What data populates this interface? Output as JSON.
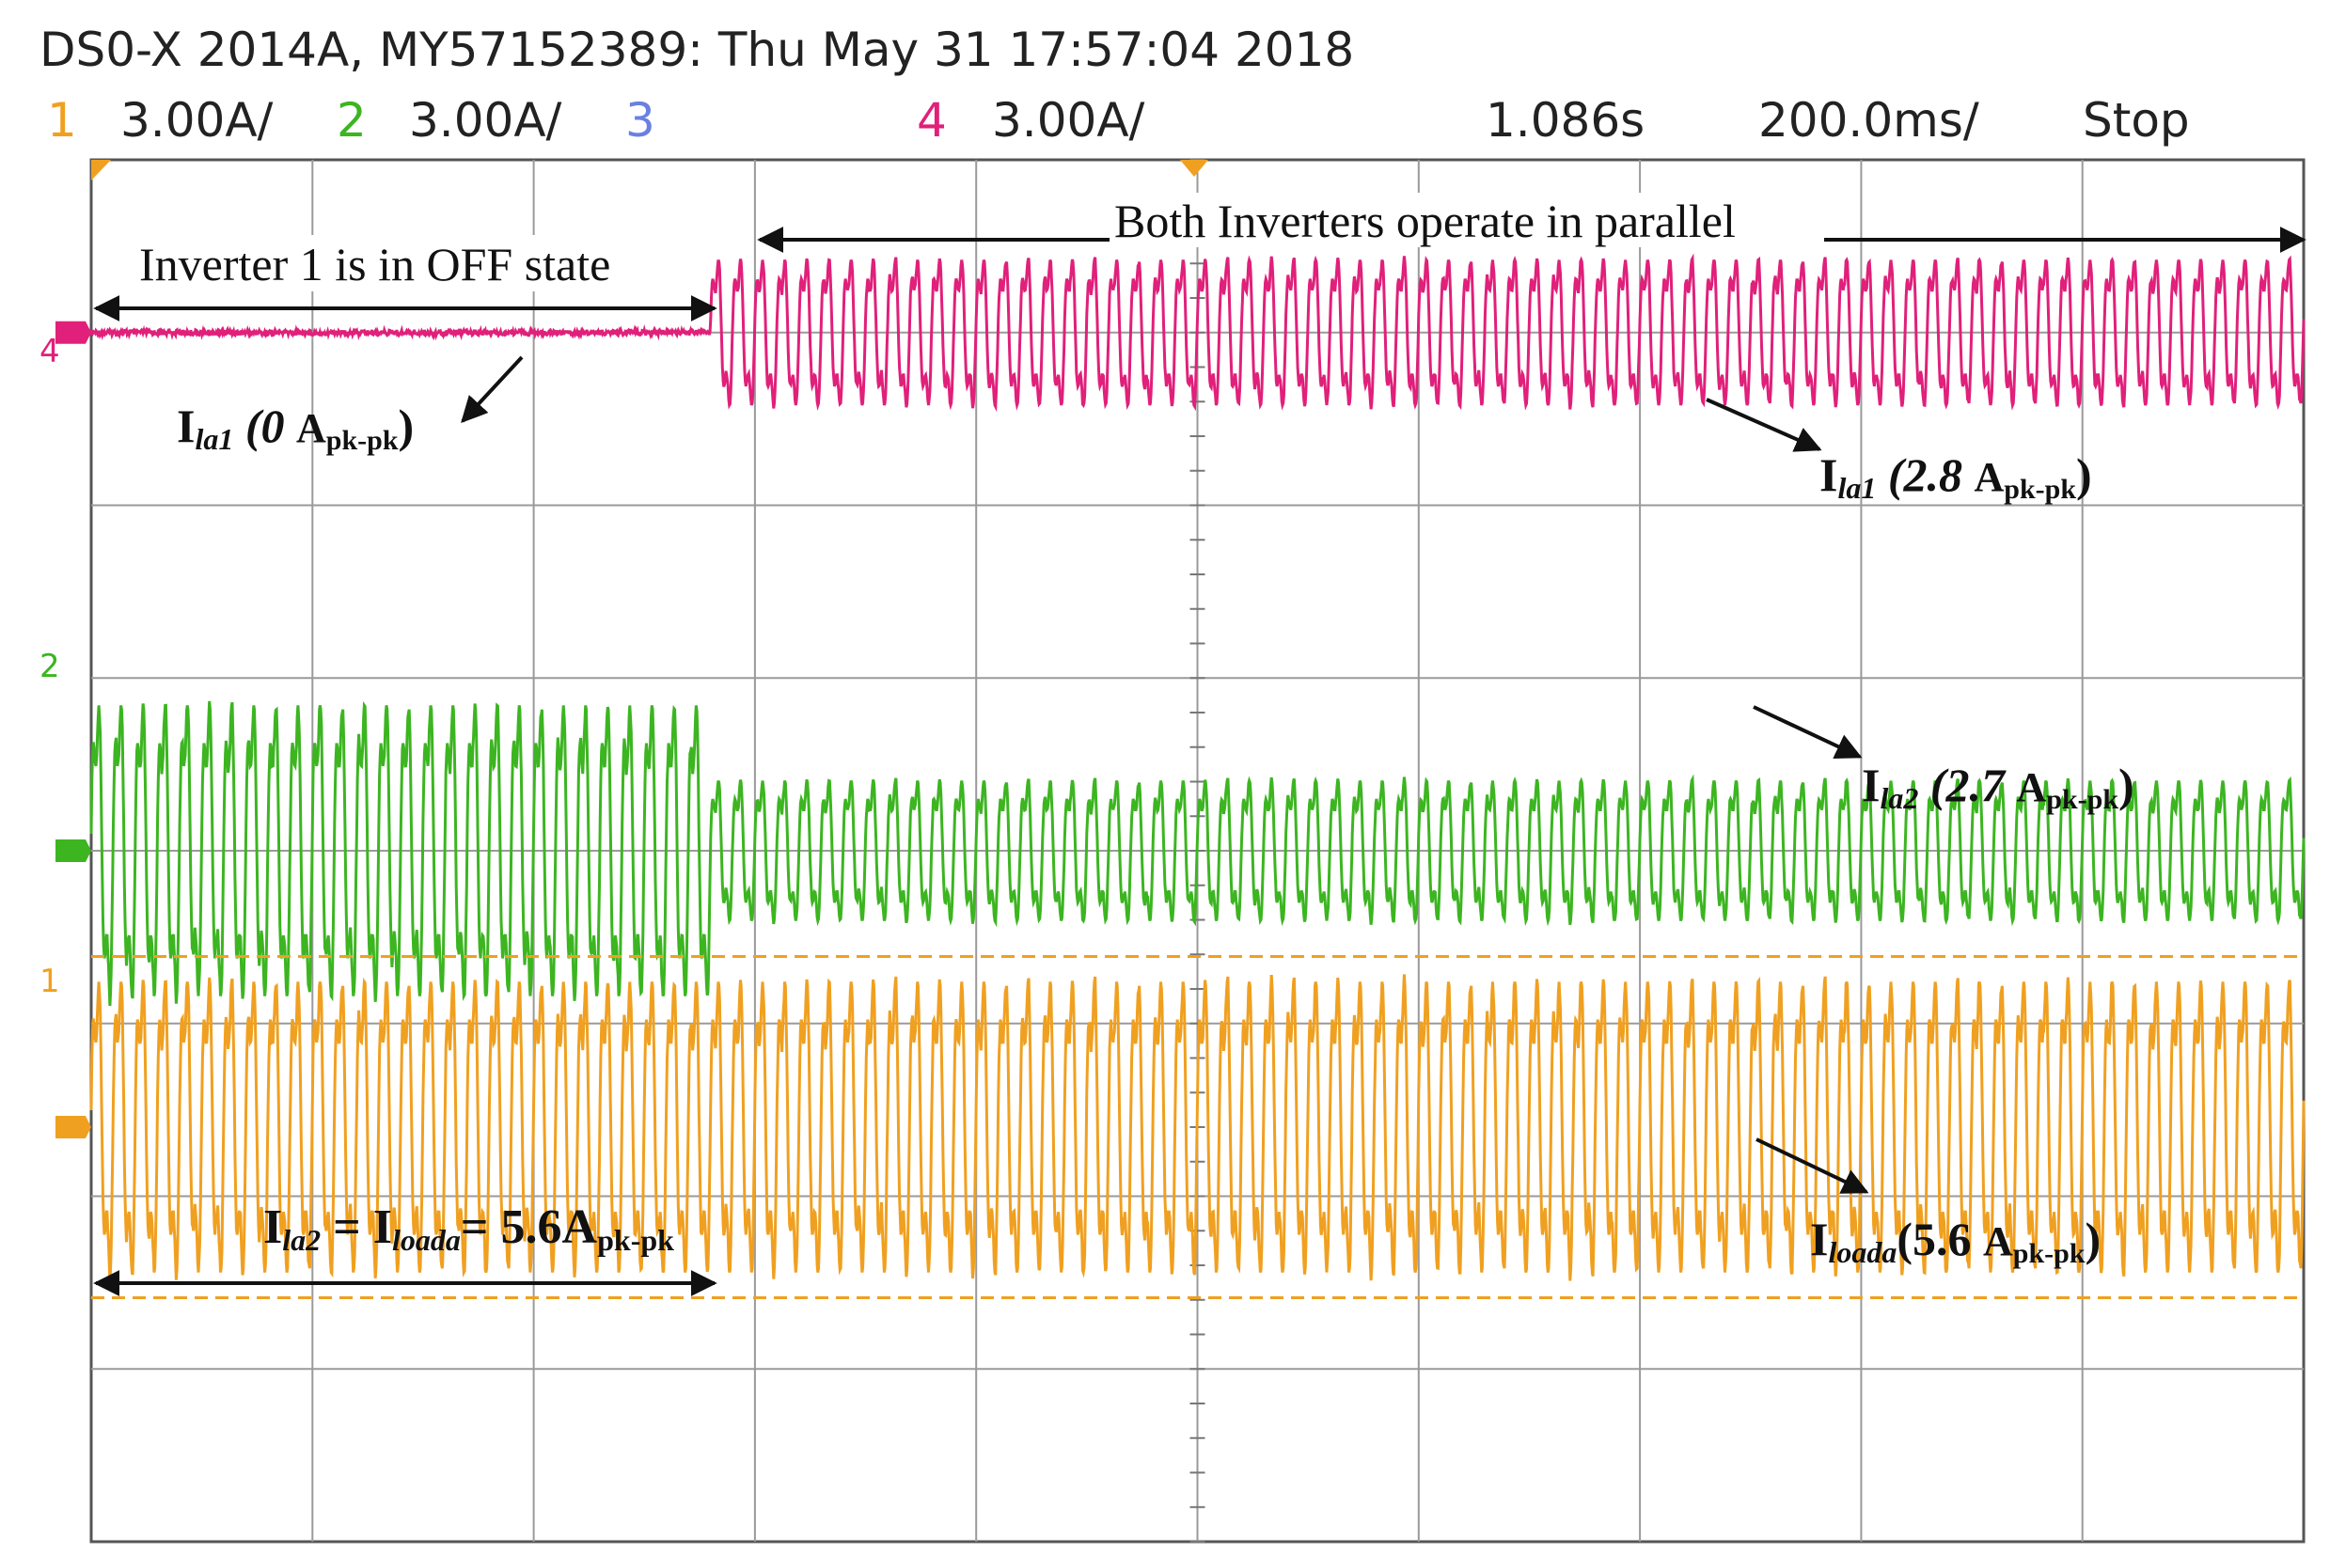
{
  "header": {
    "title": "DS0-X 2014A, MY57152389: Thu May 31 17:57:04 2018",
    "channels": [
      {
        "num": "1",
        "scale": "3.00A/",
        "color": "#f0a020"
      },
      {
        "num": "2",
        "scale": "3.00A/",
        "color": "#3cb521"
      },
      {
        "num": "3",
        "scale": "",
        "color": "#6a80e0"
      },
      {
        "num": "4",
        "scale": "3.00A/",
        "color": "#e0207a"
      }
    ],
    "time_position": "1.086s",
    "time_scale": "200.0ms/",
    "run_state": "Stop"
  },
  "ground_markers": [
    "4",
    "2",
    "1"
  ],
  "annotations": {
    "off_state": "Inverter 1 is in OFF state",
    "parallel": "Both Inverters operate in parallel",
    "ila1_before": {
      "main": "I",
      "sub": "la1",
      "value": " (0 ",
      "unit": "A",
      "unit_sub": "pk-pk",
      "close": ")"
    },
    "ila1_after": {
      "main": "I",
      "sub": "la1",
      "value": " (2.8 ",
      "unit": "A",
      "unit_sub": "pk-pk",
      "close": ")"
    },
    "ila2_after": {
      "main": "I",
      "sub": "la2",
      "value": " (2.7 ",
      "unit": "A",
      "unit_sub": "pk-pk",
      "close": ")"
    },
    "iload_after": {
      "main": "I",
      "sub": "loada",
      "value": "(5.6 ",
      "unit": "A",
      "unit_sub": "pk-pk",
      "close": ")"
    },
    "equality": {
      "a": "I",
      "a_sub": "la2",
      "eq1": " = ",
      "b": "I",
      "b_sub": "loada",
      "eq2": "= 5.6A",
      "unit_sub": "pk-pk"
    }
  },
  "chart_data": {
    "type": "line",
    "x_unit": "s",
    "time_per_div": 0.2,
    "divisions_x": 10,
    "divisions_y": 8,
    "switch_div": 2.8,
    "colors": {
      "ch1": "#f0a020",
      "ch2": "#3cb521",
      "ch4": "#e0207a"
    },
    "series": [
      {
        "channel": "4",
        "ground_div": 1.0,
        "before_pkpk_A": 0.0,
        "after_pkpk_A": 2.8
      },
      {
        "channel": "2",
        "ground_div": 4.0,
        "before_pkpk_A": 5.6,
        "after_pkpk_A": 2.7
      },
      {
        "channel": "1",
        "ground_div": 5.6,
        "before_pkpk_A": 5.6,
        "after_pkpk_A": 5.6
      }
    ]
  }
}
